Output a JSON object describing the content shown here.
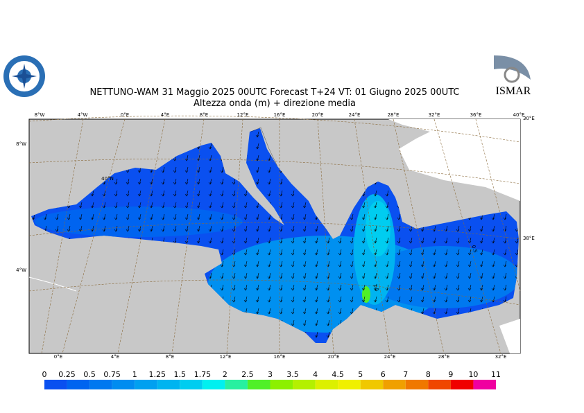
{
  "header": {
    "title": "NETTUNO-WAM  31   Maggio  2025 00UTC Forecast T+24 VT: 01   Giugno  2025 00UTC",
    "subtitle": "Altezza onda (m) + direzione media",
    "logo_right": "ISMAR"
  },
  "map": {
    "top_labels": [
      "8°W",
      "4°W",
      "0°E",
      "4°E",
      "8°E",
      "12°E",
      "16°E",
      "20°E",
      "24°E",
      "28°E",
      "32°E",
      "36°E",
      "40°E"
    ],
    "bottom_labels": [
      "0°E",
      "4°E",
      "8°E",
      "12°E",
      "16°E",
      "20°E",
      "24°E",
      "28°E",
      "32°E"
    ],
    "left_labels": [
      "8°W",
      "4°W"
    ],
    "right_labels": [
      "30°E",
      "38°E"
    ],
    "annotations": [
      "40°N",
      "0.5",
      "1.5"
    ]
  },
  "legend": {
    "labels": [
      0,
      0.25,
      0.5,
      0.75,
      1,
      1.25,
      1.5,
      1.75,
      2,
      2.5,
      3,
      3.5,
      4,
      4.5,
      5,
      6,
      7,
      8,
      9,
      10,
      11
    ],
    "colors": [
      "#0a50f0",
      "#0064f0",
      "#0078f0",
      "#008cf0",
      "#00a0f0",
      "#00b4f0",
      "#00cdf0",
      "#00f0f0",
      "#28f0a0",
      "#50f028",
      "#8cf000",
      "#b4f000",
      "#dcf000",
      "#f0f000",
      "#f0c800",
      "#f0a000",
      "#f07800",
      "#f04600",
      "#f00000",
      "#f000a0"
    ]
  }
}
